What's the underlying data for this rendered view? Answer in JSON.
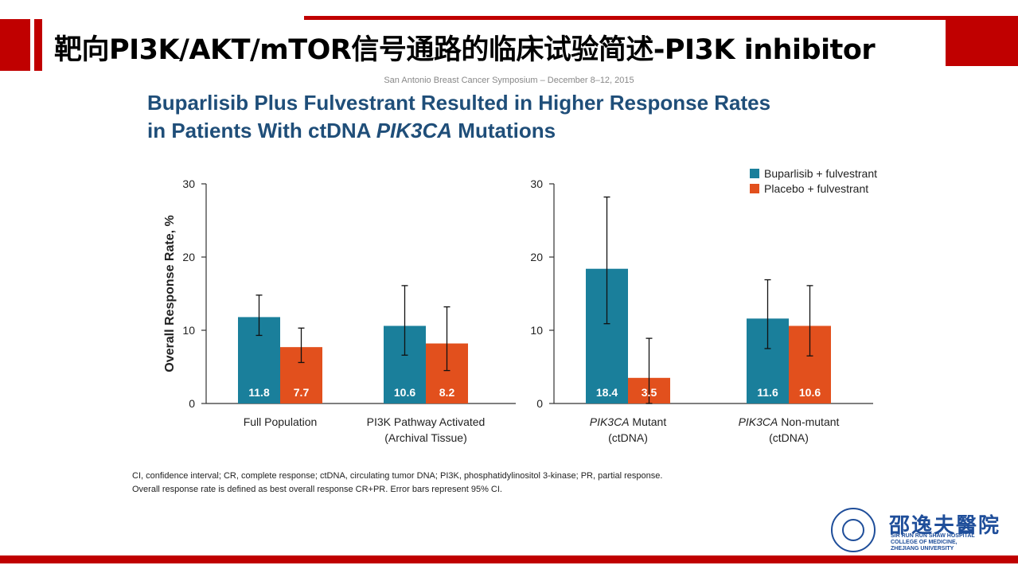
{
  "slide": {
    "title": "靶向PI3K/AKT/mTOR信号通路的临床试验简述-PI3K inhibitor",
    "conference": "San Antonio Breast Cancer Symposium – December 8–12, 2015",
    "heading_line1": "Buparlisib Plus Fulvestrant Resulted in Higher Response Rates",
    "heading_line2_a": "in Patients With ctDNA ",
    "heading_line2_em": "PIK3CA",
    "heading_line2_b": " Mutations",
    "footnote1": "CI, confidence interval; CR, complete response; ctDNA, circulating tumor DNA; PI3K, phosphatidylinositol 3-kinase; PR, partial response.",
    "footnote2": "Overall response rate is defined as best overall response CR+PR. Error bars represent 95% CI.",
    "logo_text": "邵逸夫醫院",
    "logo_en": [
      "SIR RUN RUN SHAW HOSPITAL",
      "COLLEGE OF MEDICINE,",
      "ZHEJIANG UNIVERSITY"
    ]
  },
  "colors": {
    "series1": "#1a7f9b",
    "series2": "#e2501d",
    "heading": "#1f4e79",
    "accent_red": "#c00000"
  },
  "chart_data": {
    "type": "bar",
    "ylabel": "Overall Response Rate, %",
    "ylim": [
      0,
      30
    ],
    "yticks": [
      0,
      10,
      20,
      30
    ],
    "legend_position": "top-right",
    "series_names": [
      "Buparlisib + fulvestrant",
      "Placebo + fulvestrant"
    ],
    "panels": [
      {
        "groups": [
          {
            "label_lines": [
              "Full Population"
            ],
            "label_italic_first_word": false,
            "values": [
              11.8,
              7.7
            ],
            "errors": [
              [
                9.3,
                14.8
              ],
              [
                5.6,
                10.3
              ]
            ]
          },
          {
            "label_lines": [
              "PI3K Pathway Activated",
              "(Archival Tissue)"
            ],
            "label_italic_first_word": false,
            "values": [
              10.6,
              8.2
            ],
            "errors": [
              [
                6.6,
                16.1
              ],
              [
                4.5,
                13.2
              ]
            ]
          }
        ]
      },
      {
        "groups": [
          {
            "label_lines": [
              "PIK3CA Mutant",
              "(ctDNA)"
            ],
            "label_italic_first_word": true,
            "values": [
              18.4,
              3.5
            ],
            "errors": [
              [
                10.9,
                28.2
              ],
              [
                0.0,
                8.9
              ]
            ]
          },
          {
            "label_lines": [
              "PIK3CA Non-mutant",
              "(ctDNA)"
            ],
            "label_italic_first_word": true,
            "values": [
              11.6,
              10.6
            ],
            "errors": [
              [
                7.5,
                16.9
              ],
              [
                6.5,
                16.1
              ]
            ]
          }
        ]
      }
    ]
  }
}
